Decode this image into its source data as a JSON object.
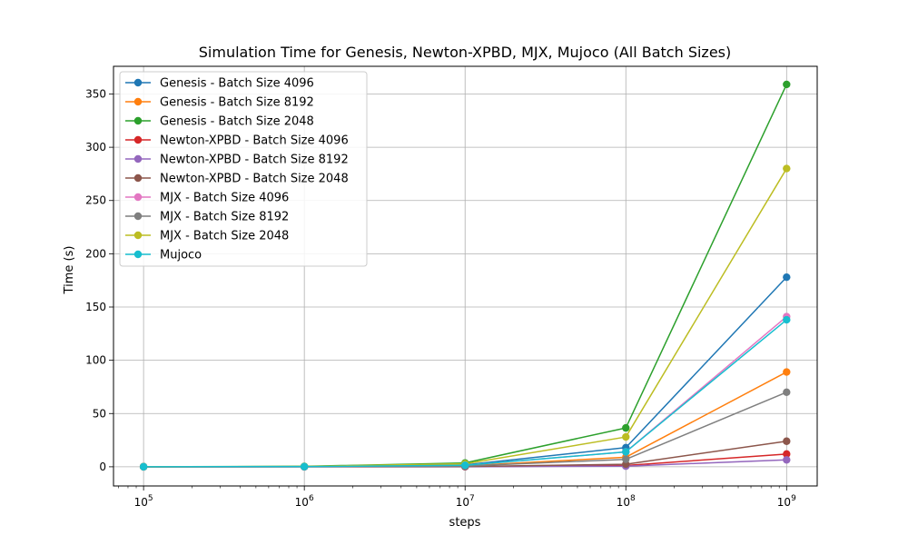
{
  "chart_data": {
    "type": "line",
    "title": "Simulation Time for Genesis, Newton-XPBD, MJX, Mujoco (All Batch Sizes)",
    "xlabel": "steps",
    "ylabel": "Time (s)",
    "x_scale": "log",
    "xlim": [
      65000,
      1550000000
    ],
    "ylim": [
      -18,
      376
    ],
    "x_ticks": [
      100000,
      1000000,
      10000000,
      100000000,
      1000000000
    ],
    "x_tick_bases": [
      "10",
      "10",
      "10",
      "10",
      "10"
    ],
    "x_tick_exponents": [
      "5",
      "6",
      "7",
      "8",
      "9"
    ],
    "y_ticks": [
      0,
      50,
      100,
      150,
      200,
      250,
      300,
      350
    ],
    "y_tick_labels": [
      "0",
      "50",
      "100",
      "150",
      "200",
      "250",
      "300",
      "350"
    ],
    "grid": true,
    "legend_position": "upper-left",
    "x": [
      100000,
      1000000,
      10000000,
      100000000,
      1000000000
    ],
    "series": [
      {
        "name": "Genesis - Batch Size 4096",
        "color": "#1f77b4",
        "values": [
          0.02,
          0.2,
          1.8,
          18,
          178
        ]
      },
      {
        "name": "Genesis - Batch Size 8192",
        "color": "#ff7f0e",
        "values": [
          0.01,
          0.1,
          0.9,
          9,
          89
        ]
      },
      {
        "name": "Genesis - Batch Size 2048",
        "color": "#2ca02c",
        "values": [
          0.04,
          0.4,
          3.6,
          36.5,
          359
        ]
      },
      {
        "name": "Newton-XPBD - Batch Size 4096",
        "color": "#d62728",
        "values": [
          0.001,
          0.01,
          0.12,
          1.2,
          12
        ]
      },
      {
        "name": "Newton-XPBD - Batch Size 8192",
        "color": "#9467bd",
        "values": [
          0.001,
          0.006,
          0.06,
          0.6,
          6.5
        ]
      },
      {
        "name": "Newton-XPBD - Batch Size 2048",
        "color": "#8c564b",
        "values": [
          0.002,
          0.02,
          0.24,
          2.4,
          24
        ]
      },
      {
        "name": "MJX - Batch Size 4096",
        "color": "#e377c2",
        "values": [
          0.01,
          0.14,
          1.4,
          14,
          141
        ]
      },
      {
        "name": "MJX - Batch Size 8192",
        "color": "#7f7f7f",
        "values": [
          0.007,
          0.07,
          0.7,
          7,
          70
        ]
      },
      {
        "name": "MJX - Batch Size 2048",
        "color": "#bcbd22",
        "values": [
          0.03,
          0.28,
          2.8,
          28,
          280
        ]
      },
      {
        "name": "Mujoco",
        "color": "#17becf",
        "values": [
          0.01,
          0.14,
          1.4,
          14,
          138
        ]
      }
    ]
  }
}
